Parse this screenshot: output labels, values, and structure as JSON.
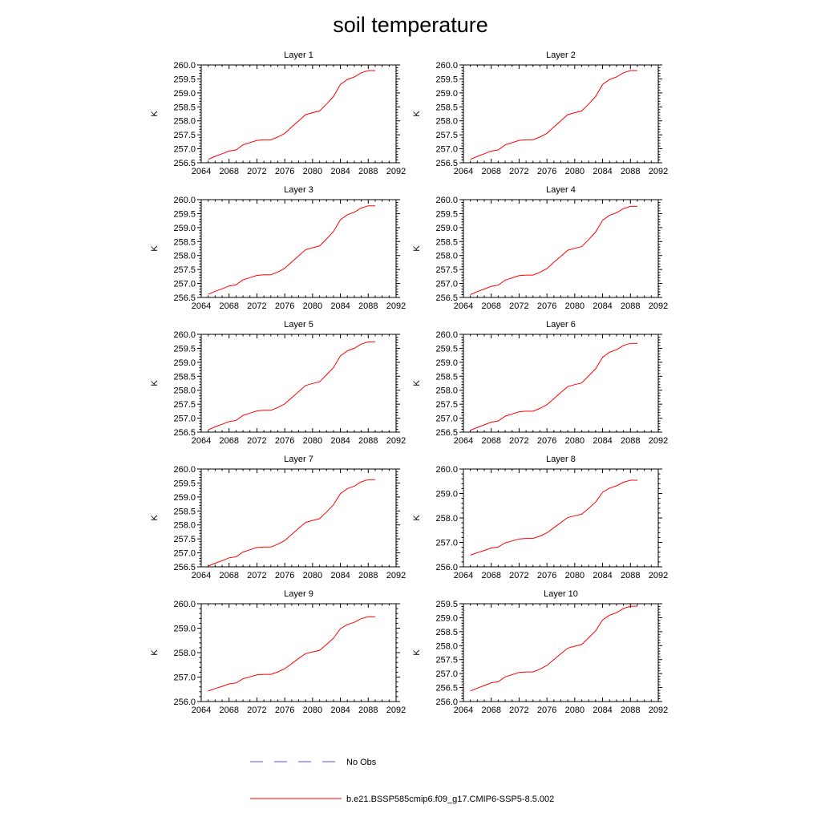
{
  "title": "soil temperature",
  "colors": {
    "model": "#ff0000",
    "obs": "#4d4dff",
    "axis": "#000000"
  },
  "legend": {
    "obs_label": "No Obs",
    "model_label": "b.e21.BSSP585cmip6.f09_g17.CMIP6-SSP5-8.5.002"
  },
  "chart_data": [
    {
      "type": "line",
      "title": "Layer 1",
      "ylabel": "K",
      "xlim": [
        2064,
        2092
      ],
      "ylim": [
        256.5,
        260.0
      ],
      "xticks": [
        "2064",
        "2068",
        "2072",
        "2076",
        "2080",
        "2084",
        "2088",
        "2092"
      ],
      "yticks": [
        "256.5",
        "257.0",
        "257.5",
        "258.0",
        "258.5",
        "259.0",
        "259.5",
        "260.0"
      ],
      "x": [
        2065,
        2066,
        2067,
        2068,
        2069,
        2070,
        2071,
        2072,
        2073,
        2074,
        2075,
        2076,
        2077,
        2078,
        2079,
        2080,
        2081,
        2082,
        2083,
        2084,
        2085,
        2086,
        2087,
        2088,
        2089
      ],
      "series": [
        {
          "name": "b.e21.BSSP585cmip6.f09_g17.CMIP6-SSP5-8.5.002",
          "values": [
            256.62,
            256.73,
            256.82,
            256.92,
            256.96,
            257.14,
            257.22,
            257.3,
            257.32,
            257.32,
            257.42,
            257.55,
            257.78,
            258.0,
            258.22,
            258.29,
            258.35,
            258.6,
            258.87,
            259.3,
            259.48,
            259.57,
            259.72,
            259.8,
            259.8
          ]
        }
      ]
    },
    {
      "type": "line",
      "title": "Layer 2",
      "ylabel": "K",
      "xlim": [
        2064,
        2092
      ],
      "ylim": [
        256.5,
        260.0
      ],
      "xticks": [
        "2064",
        "2068",
        "2072",
        "2076",
        "2080",
        "2084",
        "2088",
        "2092"
      ],
      "yticks": [
        "256.5",
        "257.0",
        "257.5",
        "258.0",
        "258.5",
        "259.0",
        "259.5",
        "260.0"
      ],
      "x": [
        2065,
        2066,
        2067,
        2068,
        2069,
        2070,
        2071,
        2072,
        2073,
        2074,
        2075,
        2076,
        2077,
        2078,
        2079,
        2080,
        2081,
        2082,
        2083,
        2084,
        2085,
        2086,
        2087,
        2088,
        2089
      ],
      "series": [
        {
          "name": "b.e21.BSSP585cmip6.f09_g17.CMIP6-SSP5-8.5.002",
          "values": [
            256.62,
            256.73,
            256.82,
            256.92,
            256.96,
            257.14,
            257.22,
            257.3,
            257.32,
            257.32,
            257.42,
            257.55,
            257.78,
            258.0,
            258.22,
            258.29,
            258.35,
            258.6,
            258.87,
            259.3,
            259.48,
            259.57,
            259.72,
            259.8,
            259.8
          ]
        }
      ]
    },
    {
      "type": "line",
      "title": "Layer 3",
      "ylabel": "K",
      "xlim": [
        2064,
        2092
      ],
      "ylim": [
        256.5,
        260.0
      ],
      "xticks": [
        "2064",
        "2068",
        "2072",
        "2076",
        "2080",
        "2084",
        "2088",
        "2092"
      ],
      "yticks": [
        "256.5",
        "257.0",
        "257.5",
        "258.0",
        "258.5",
        "259.0",
        "259.5",
        "260.0"
      ],
      "x": [
        2065,
        2066,
        2067,
        2068,
        2069,
        2070,
        2071,
        2072,
        2073,
        2074,
        2075,
        2076,
        2077,
        2078,
        2079,
        2080,
        2081,
        2082,
        2083,
        2084,
        2085,
        2086,
        2087,
        2088,
        2089
      ],
      "series": [
        {
          "name": "b.e21.BSSP585cmip6.f09_g17.CMIP6-SSP5-8.5.002",
          "values": [
            256.61,
            256.72,
            256.81,
            256.91,
            256.95,
            257.13,
            257.21,
            257.29,
            257.31,
            257.31,
            257.41,
            257.54,
            257.77,
            257.99,
            258.21,
            258.28,
            258.34,
            258.59,
            258.86,
            259.28,
            259.46,
            259.55,
            259.7,
            259.78,
            259.78
          ]
        }
      ]
    },
    {
      "type": "line",
      "title": "Layer 4",
      "ylabel": "K",
      "xlim": [
        2064,
        2092
      ],
      "ylim": [
        256.5,
        260.0
      ],
      "xticks": [
        "2064",
        "2068",
        "2072",
        "2076",
        "2080",
        "2084",
        "2088",
        "2092"
      ],
      "yticks": [
        "256.5",
        "257.0",
        "257.5",
        "258.0",
        "258.5",
        "259.0",
        "259.5",
        "260.0"
      ],
      "x": [
        2065,
        2066,
        2067,
        2068,
        2069,
        2070,
        2071,
        2072,
        2073,
        2074,
        2075,
        2076,
        2077,
        2078,
        2079,
        2080,
        2081,
        2082,
        2083,
        2084,
        2085,
        2086,
        2087,
        2088,
        2089
      ],
      "series": [
        {
          "name": "b.e21.BSSP585cmip6.f09_g17.CMIP6-SSP5-8.5.002",
          "values": [
            256.6,
            256.71,
            256.8,
            256.9,
            256.94,
            257.12,
            257.2,
            257.28,
            257.3,
            257.3,
            257.4,
            257.53,
            257.76,
            257.97,
            258.19,
            258.26,
            258.32,
            258.57,
            258.84,
            259.26,
            259.44,
            259.53,
            259.68,
            259.76,
            259.76
          ]
        }
      ]
    },
    {
      "type": "line",
      "title": "Layer 5",
      "ylabel": "K",
      "xlim": [
        2064,
        2092
      ],
      "ylim": [
        256.5,
        260.0
      ],
      "xticks": [
        "2064",
        "2068",
        "2072",
        "2076",
        "2080",
        "2084",
        "2088",
        "2092"
      ],
      "yticks": [
        "256.5",
        "257.0",
        "257.5",
        "258.0",
        "258.5",
        "259.0",
        "259.5",
        "260.0"
      ],
      "x": [
        2065,
        2066,
        2067,
        2068,
        2069,
        2070,
        2071,
        2072,
        2073,
        2074,
        2075,
        2076,
        2077,
        2078,
        2079,
        2080,
        2081,
        2082,
        2083,
        2084,
        2085,
        2086,
        2087,
        2088,
        2089
      ],
      "series": [
        {
          "name": "b.e21.BSSP585cmip6.f09_g17.CMIP6-SSP5-8.5.002",
          "values": [
            256.58,
            256.69,
            256.78,
            256.88,
            256.92,
            257.1,
            257.18,
            257.26,
            257.28,
            257.28,
            257.38,
            257.51,
            257.73,
            257.95,
            258.17,
            258.24,
            258.3,
            258.55,
            258.81,
            259.23,
            259.41,
            259.5,
            259.65,
            259.73,
            259.73
          ]
        }
      ]
    },
    {
      "type": "line",
      "title": "Layer 6",
      "ylabel": "K",
      "xlim": [
        2064,
        2092
      ],
      "ylim": [
        256.5,
        260.0
      ],
      "xticks": [
        "2064",
        "2068",
        "2072",
        "2076",
        "2080",
        "2084",
        "2088",
        "2092"
      ],
      "yticks": [
        "256.5",
        "257.0",
        "257.5",
        "258.0",
        "258.5",
        "259.0",
        "259.5",
        "260.0"
      ],
      "x": [
        2065,
        2066,
        2067,
        2068,
        2069,
        2070,
        2071,
        2072,
        2073,
        2074,
        2075,
        2076,
        2077,
        2078,
        2079,
        2080,
        2081,
        2082,
        2083,
        2084,
        2085,
        2086,
        2087,
        2088,
        2089
      ],
      "series": [
        {
          "name": "b.e21.BSSP585cmip6.f09_g17.CMIP6-SSP5-8.5.002",
          "values": [
            256.57,
            256.67,
            256.76,
            256.86,
            256.9,
            257.07,
            257.15,
            257.23,
            257.25,
            257.25,
            257.35,
            257.48,
            257.7,
            257.92,
            258.13,
            258.2,
            258.26,
            258.51,
            258.77,
            259.18,
            259.36,
            259.45,
            259.6,
            259.68,
            259.68
          ]
        }
      ]
    },
    {
      "type": "line",
      "title": "Layer 7",
      "ylabel": "K",
      "xlim": [
        2064,
        2092
      ],
      "ylim": [
        256.5,
        260.0
      ],
      "xticks": [
        "2064",
        "2068",
        "2072",
        "2076",
        "2080",
        "2084",
        "2088",
        "2092"
      ],
      "yticks": [
        "256.5",
        "257.0",
        "257.5",
        "258.0",
        "258.5",
        "259.0",
        "259.5",
        "260.0"
      ],
      "x": [
        2065,
        2066,
        2067,
        2068,
        2069,
        2070,
        2071,
        2072,
        2073,
        2074,
        2075,
        2076,
        2077,
        2078,
        2079,
        2080,
        2081,
        2082,
        2083,
        2084,
        2085,
        2086,
        2087,
        2088,
        2089
      ],
      "series": [
        {
          "name": "b.e21.BSSP585cmip6.f09_g17.CMIP6-SSP5-8.5.002",
          "values": [
            256.53,
            256.63,
            256.72,
            256.82,
            256.86,
            257.03,
            257.11,
            257.19,
            257.21,
            257.21,
            257.31,
            257.44,
            257.66,
            257.88,
            258.09,
            258.16,
            258.22,
            258.46,
            258.72,
            259.12,
            259.3,
            259.39,
            259.54,
            259.62,
            259.62
          ]
        }
      ]
    },
    {
      "type": "line",
      "title": "Layer 8",
      "ylabel": "K",
      "xlim": [
        2064,
        2092
      ],
      "ylim": [
        256.0,
        260.0
      ],
      "xticks": [
        "2064",
        "2068",
        "2072",
        "2076",
        "2080",
        "2084",
        "2088",
        "2092"
      ],
      "yticks": [
        "256.0",
        "257.0",
        "258.0",
        "259.0",
        "260.0"
      ],
      "x": [
        2065,
        2066,
        2067,
        2068,
        2069,
        2070,
        2071,
        2072,
        2073,
        2074,
        2075,
        2076,
        2077,
        2078,
        2079,
        2080,
        2081,
        2082,
        2083,
        2084,
        2085,
        2086,
        2087,
        2088,
        2089
      ],
      "series": [
        {
          "name": "b.e21.BSSP585cmip6.f09_g17.CMIP6-SSP5-8.5.002",
          "values": [
            256.48,
            256.58,
            256.67,
            256.77,
            256.81,
            256.98,
            257.06,
            257.14,
            257.16,
            257.16,
            257.26,
            257.39,
            257.6,
            257.81,
            258.02,
            258.09,
            258.15,
            258.39,
            258.65,
            259.05,
            259.22,
            259.31,
            259.46,
            259.54,
            259.54
          ]
        }
      ]
    },
    {
      "type": "line",
      "title": "Layer 9",
      "ylabel": "K",
      "xlim": [
        2064,
        2092
      ],
      "ylim": [
        256.0,
        260.0
      ],
      "xticks": [
        "2064",
        "2068",
        "2072",
        "2076",
        "2080",
        "2084",
        "2088",
        "2092"
      ],
      "yticks": [
        "256.0",
        "257.0",
        "258.0",
        "259.0",
        "260.0"
      ],
      "x": [
        2065,
        2066,
        2067,
        2068,
        2069,
        2070,
        2071,
        2072,
        2073,
        2074,
        2075,
        2076,
        2077,
        2078,
        2079,
        2080,
        2081,
        2082,
        2083,
        2084,
        2085,
        2086,
        2087,
        2088,
        2089
      ],
      "series": [
        {
          "name": "b.e21.BSSP585cmip6.f09_g17.CMIP6-SSP5-8.5.002",
          "values": [
            256.43,
            256.53,
            256.62,
            256.72,
            256.76,
            256.93,
            257.01,
            257.09,
            257.11,
            257.11,
            257.21,
            257.34,
            257.55,
            257.76,
            257.96,
            258.03,
            258.09,
            258.33,
            258.59,
            258.98,
            259.15,
            259.24,
            259.39,
            259.47,
            259.47
          ]
        }
      ]
    },
    {
      "type": "line",
      "title": "Layer 10",
      "ylabel": "K",
      "xlim": [
        2064,
        2092
      ],
      "ylim": [
        256.0,
        259.5
      ],
      "xticks": [
        "2064",
        "2068",
        "2072",
        "2076",
        "2080",
        "2084",
        "2088",
        "2092"
      ],
      "yticks": [
        "256.0",
        "256.5",
        "257.0",
        "257.5",
        "258.0",
        "258.5",
        "259.0",
        "259.5"
      ],
      "x": [
        2065,
        2066,
        2067,
        2068,
        2069,
        2070,
        2071,
        2072,
        2073,
        2074,
        2075,
        2076,
        2077,
        2078,
        2079,
        2080,
        2081,
        2082,
        2083,
        2084,
        2085,
        2086,
        2087,
        2088,
        2089
      ],
      "series": [
        {
          "name": "b.e21.BSSP585cmip6.f09_g17.CMIP6-SSP5-8.5.002",
          "values": [
            256.38,
            256.48,
            256.57,
            256.67,
            256.71,
            256.88,
            256.96,
            257.04,
            257.06,
            257.06,
            257.16,
            257.29,
            257.5,
            257.71,
            257.91,
            257.98,
            258.04,
            258.28,
            258.53,
            258.92,
            259.09,
            259.18,
            259.33,
            259.41,
            259.41
          ]
        }
      ]
    }
  ]
}
